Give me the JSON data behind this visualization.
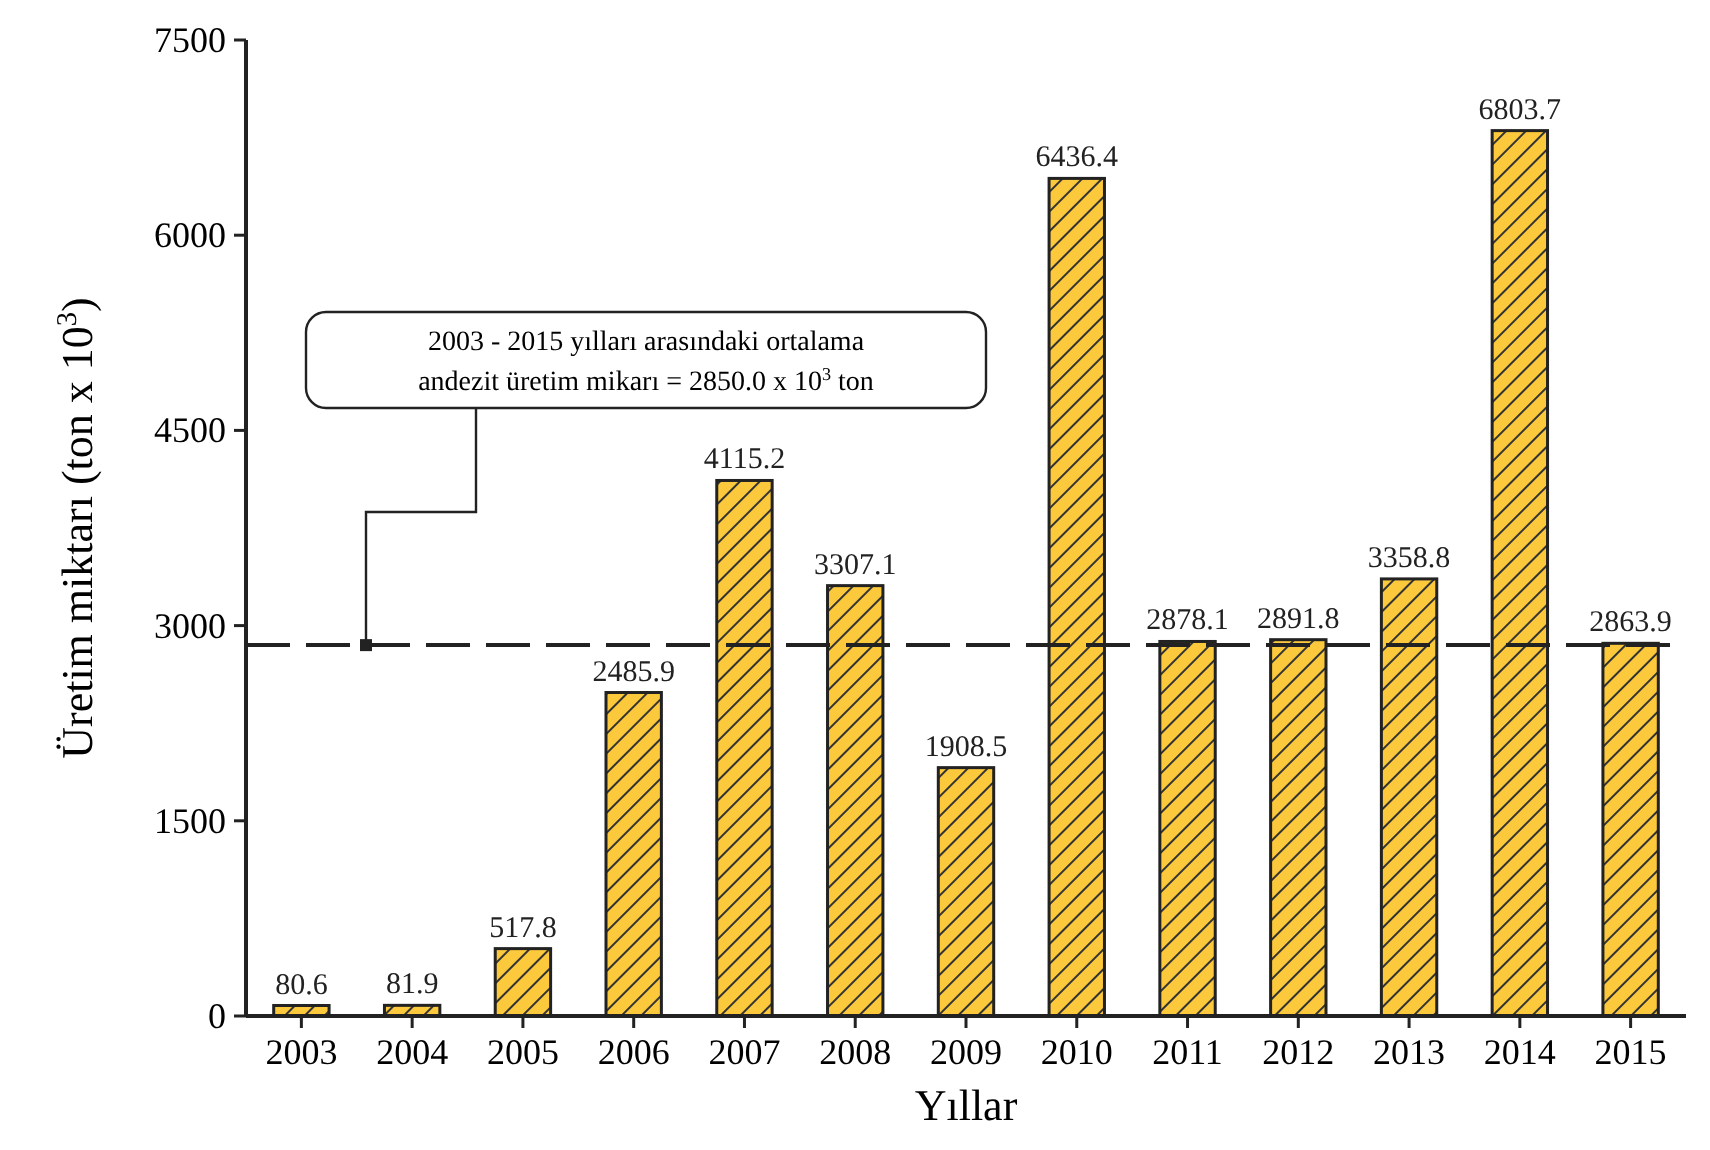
{
  "chart_data": {
    "type": "bar",
    "xlabel": "Yıllar",
    "ylabel": "Üretim miktarı (ton x 10$^{3}$)",
    "categories": [
      "2003",
      "2004",
      "2005",
      "2006",
      "2007",
      "2008",
      "2009",
      "2010",
      "2011",
      "2012",
      "2013",
      "2014",
      "2015"
    ],
    "values": [
      80.6,
      81.9,
      517.8,
      2485.9,
      4115.2,
      3307.1,
      1908.5,
      6436.4,
      2878.1,
      2891.8,
      3358.8,
      6803.7,
      2863.9
    ],
    "color": "#fcc93c",
    "ylim": [
      0,
      7500
    ],
    "yticks": [
      0,
      1500,
      3000,
      4500,
      6000,
      7500
    ],
    "grid": false,
    "data_labels": true,
    "ref_lines": [
      {
        "axis": "y",
        "value": 2850,
        "label": "2003 - 2015 yılları arasındaki ortalama andezit üretim mikarı = 2850.0 x 10$^{3}$ ton",
        "line_style": "dashed",
        "color": "#222222"
      }
    ]
  }
}
